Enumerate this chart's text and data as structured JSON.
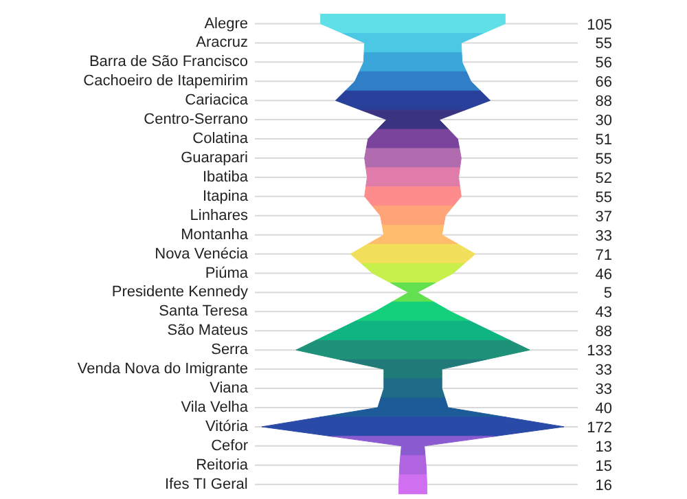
{
  "chart_data": {
    "type": "other",
    "categories": [
      "Alegre",
      "Aracruz",
      "Barra de São Francisco",
      "Cachoeiro de Itapemirim",
      "Cariacica",
      "Centro-Serrano",
      "Colatina",
      "Guarapari",
      "Ibatiba",
      "Itapina",
      "Linhares",
      "Montanha",
      "Nova Venécia",
      "Piúma",
      "Presidente Kennedy",
      "Santa Teresa",
      "São Mateus",
      "Serra",
      "Venda Nova do Imigrante",
      "Viana",
      "Vila Velha",
      "Vitória",
      "Cefor",
      "Reitoria",
      "Ifes TI Geral"
    ],
    "values": [
      105,
      55,
      56,
      66,
      88,
      30,
      51,
      55,
      52,
      55,
      37,
      33,
      71,
      46,
      5,
      43,
      88,
      133,
      33,
      33,
      40,
      172,
      13,
      15,
      16
    ],
    "colors": [
      "#5ee0e6",
      "#4cc8e4",
      "#3aa6da",
      "#2f7ec6",
      "#28409a",
      "#3a3480",
      "#7a449c",
      "#b06cae",
      "#e07caa",
      "#ff8c8c",
      "#ffa478",
      "#ffbc6c",
      "#f2e05c",
      "#c8f04c",
      "#62e050",
      "#14d07c",
      "#10b482",
      "#1e9278",
      "#1f7a78",
      "#1e6c88",
      "#1c5a98",
      "#2a4aa8",
      "#8a5ad0",
      "#b064e0",
      "#d070f0"
    ],
    "data_labels": true
  }
}
